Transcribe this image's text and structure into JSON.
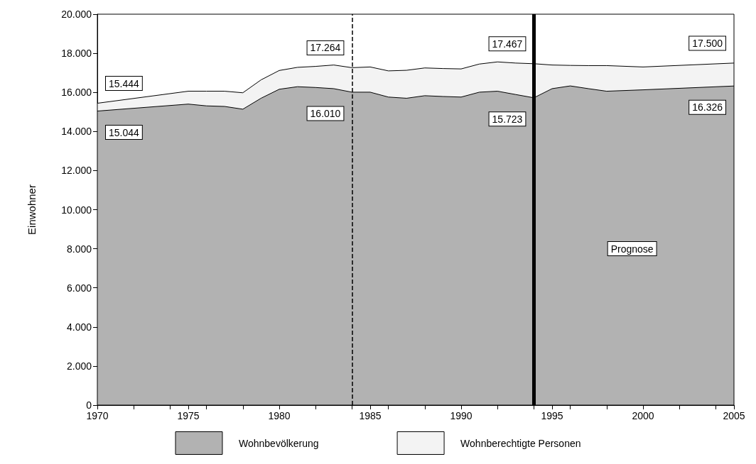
{
  "chart_data": {
    "type": "area",
    "ylabel": "Einwohner",
    "x": [
      1970,
      1975,
      1976,
      1977,
      1978,
      1979,
      1980,
      1981,
      1982,
      1983,
      1984,
      1985,
      1986,
      1987,
      1988,
      1989,
      1990,
      1991,
      1992,
      1993,
      1994,
      1995,
      1996,
      1997,
      1998,
      2000,
      2005
    ],
    "series": [
      {
        "name": "Wohnbevölkerung",
        "color": "#b2b2b2",
        "values": [
          15044,
          15400,
          15310,
          15280,
          15140,
          15700,
          16160,
          16290,
          16250,
          16190,
          16010,
          16010,
          15760,
          15700,
          15830,
          15790,
          15760,
          16010,
          16060,
          15890,
          15723,
          16190,
          16330,
          16190,
          16060,
          16130,
          16326
        ]
      },
      {
        "name": "Wohnberechtigte Personen",
        "color": "#f3f3f3",
        "values": [
          15444,
          16060,
          16060,
          16060,
          15980,
          16640,
          17120,
          17280,
          17330,
          17400,
          17264,
          17300,
          17100,
          17130,
          17250,
          17220,
          17200,
          17450,
          17560,
          17500,
          17467,
          17400,
          17380,
          17370,
          17370,
          17300,
          17500
        ]
      }
    ],
    "xlim": [
      1970,
      2005
    ],
    "xticks": [
      1970,
      1975,
      1980,
      1985,
      1990,
      1995,
      2000,
      2005
    ],
    "ylim": [
      0,
      20000
    ],
    "yticks": [
      {
        "value": 0,
        "label": "0"
      },
      {
        "value": 2000,
        "label": "2.000"
      },
      {
        "value": 4000,
        "label": "4.000"
      },
      {
        "value": 6000,
        "label": "6.000"
      },
      {
        "value": 8000,
        "label": "8.000"
      },
      {
        "value": 10000,
        "label": "10.000"
      },
      {
        "value": 12000,
        "label": "12.000"
      },
      {
        "value": 14000,
        "label": "14.000"
      },
      {
        "value": 16000,
        "label": "16.000"
      },
      {
        "value": 18000,
        "label": "18.000"
      },
      {
        "value": 20000,
        "label": "20.000"
      }
    ],
    "ref_lines": [
      {
        "axis": "x",
        "value": 1984,
        "color": "#000000",
        "line_style": "dashed"
      },
      {
        "axis": "x",
        "value": 1994,
        "color": "#000000",
        "line_style": "solid"
      }
    ],
    "annotations": [
      {
        "text": "15.444",
        "x": 1970,
        "y": 15444
      },
      {
        "text": "15.044",
        "x": 1970,
        "y": 15044
      },
      {
        "text": "17.264",
        "x": 1984,
        "y": 17264
      },
      {
        "text": "16.010",
        "x": 1984,
        "y": 16010
      },
      {
        "text": "17.467",
        "x": 1994,
        "y": 17467
      },
      {
        "text": "15.723",
        "x": 1994,
        "y": 15723
      },
      {
        "text": "17.500",
        "x": 2005,
        "y": 17500
      },
      {
        "text": "16.326",
        "x": 2005,
        "y": 16326
      },
      "Prognose"
    ],
    "legend": "bottom",
    "grid": false,
    "marker": "none",
    "line_style": "solid"
  }
}
